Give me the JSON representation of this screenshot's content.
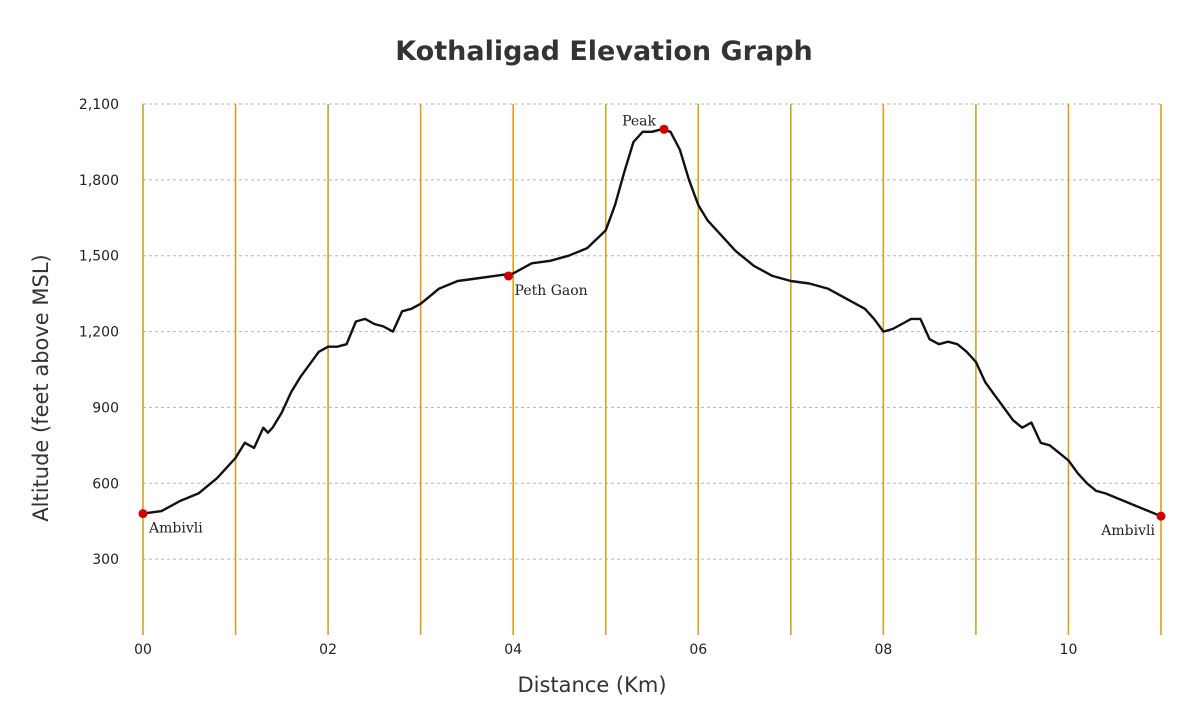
{
  "chart_data": {
    "type": "line",
    "title": "Kothaligad Elevation Graph",
    "xlabel": "Distance (Km)",
    "ylabel": "Altitude (feet above MSL)",
    "xlim": [
      0,
      11
    ],
    "ylim": [
      0,
      2100
    ],
    "x_ticks": [
      0,
      2,
      4,
      6,
      8,
      10
    ],
    "x_tick_labels": [
      "00",
      "02",
      "04",
      "06",
      "08",
      "10"
    ],
    "x_gridlines": [
      0,
      1,
      2,
      3,
      4,
      5,
      6,
      7,
      8,
      9,
      10,
      11
    ],
    "y_ticks": [
      300,
      600,
      900,
      1200,
      1500,
      1800,
      2100
    ],
    "y_tick_labels": [
      "300",
      "600",
      "900",
      "1,200",
      "1,500",
      "1,800",
      "2,100"
    ],
    "grid": true,
    "legend": "none",
    "line_color": "#111111",
    "vertical_grid_color": "#d4a21c",
    "marker_color": "#d00000",
    "series": [
      {
        "x": [
          0,
          0.2,
          0.4,
          0.6,
          0.8,
          0.9,
          1.0,
          1.1,
          1.2,
          1.3,
          1.35,
          1.4,
          1.5,
          1.6,
          1.7,
          1.8,
          1.9,
          2.0,
          2.1,
          2.2,
          2.3,
          2.4,
          2.5,
          2.6,
          2.7,
          2.8,
          2.9,
          3.0,
          3.1,
          3.2,
          3.4,
          3.6,
          3.8,
          4.0,
          4.2,
          4.4,
          4.6,
          4.8,
          5.0,
          5.1,
          5.2,
          5.3,
          5.4,
          5.5,
          5.6,
          5.7,
          5.8,
          5.9,
          6.0,
          6.1,
          6.2,
          6.4,
          6.6,
          6.8,
          7.0,
          7.2,
          7.4,
          7.6,
          7.8,
          7.9,
          8.0,
          8.1,
          8.2,
          8.3,
          8.4,
          8.5,
          8.6,
          8.7,
          8.8,
          8.9,
          9.0,
          9.1,
          9.2,
          9.3,
          9.4,
          9.5,
          9.6,
          9.7,
          9.8,
          9.9,
          10.0,
          10.1,
          10.2,
          10.3,
          10.4,
          10.6,
          10.8,
          11.0
        ],
        "y": [
          480,
          490,
          530,
          560,
          620,
          660,
          700,
          760,
          740,
          820,
          800,
          820,
          880,
          960,
          1020,
          1070,
          1120,
          1140,
          1140,
          1150,
          1240,
          1250,
          1230,
          1220,
          1200,
          1280,
          1290,
          1310,
          1340,
          1370,
          1400,
          1410,
          1420,
          1430,
          1470,
          1480,
          1500,
          1530,
          1600,
          1700,
          1830,
          1950,
          1990,
          1990,
          2000,
          1990,
          1920,
          1800,
          1700,
          1640,
          1600,
          1520,
          1460,
          1420,
          1400,
          1390,
          1370,
          1330,
          1290,
          1250,
          1200,
          1210,
          1230,
          1250,
          1250,
          1170,
          1150,
          1160,
          1150,
          1120,
          1080,
          1000,
          950,
          900,
          850,
          820,
          840,
          760,
          750,
          720,
          690,
          640,
          600,
          570,
          560,
          530,
          500,
          470
        ]
      }
    ],
    "annotations": [
      {
        "text": "Ambivli",
        "x": 0,
        "y": 480,
        "anchor": "start",
        "position": "below-right"
      },
      {
        "text": "Peth Gaon",
        "x": 3.95,
        "y": 1420,
        "anchor": "start",
        "position": "below-right"
      },
      {
        "text": "Peak",
        "x": 5.63,
        "y": 2000,
        "anchor": "end",
        "position": "above-left"
      },
      {
        "text": "Ambivli",
        "x": 11,
        "y": 470,
        "anchor": "end",
        "position": "below-left"
      }
    ]
  }
}
